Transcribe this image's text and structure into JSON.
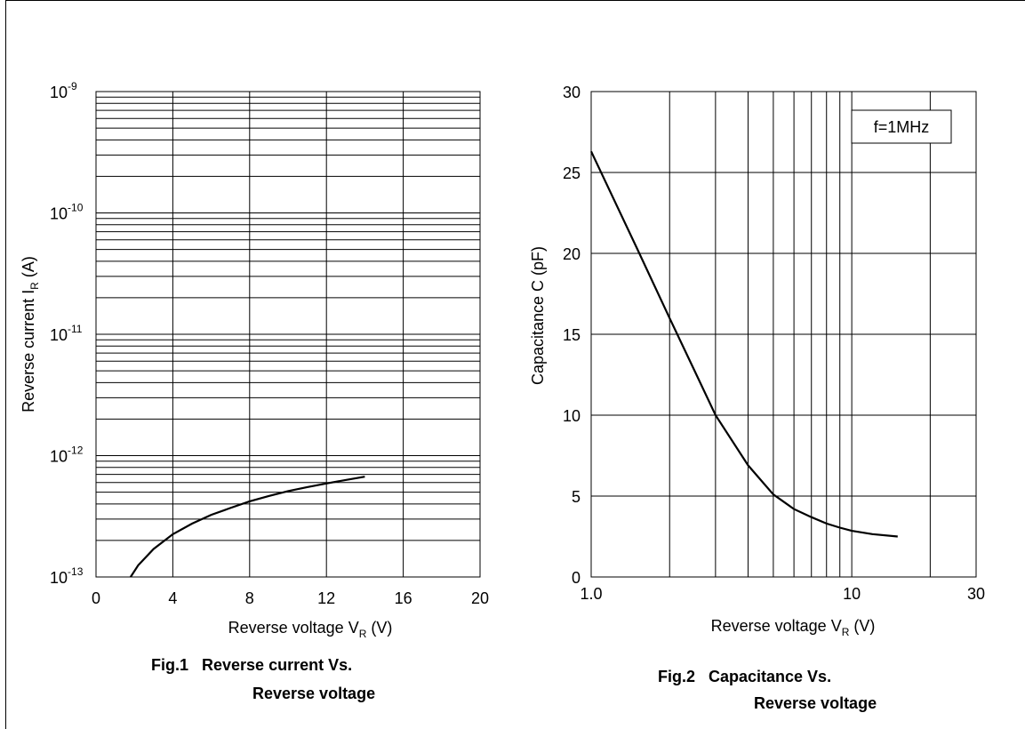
{
  "chart_data": [
    {
      "type": "line",
      "caption_line1": "Fig.1   Reverse current Vs.",
      "caption_line2": "Reverse voltage",
      "xlabel": "Reverse voltage  V",
      "xlabel_sub": "R",
      "xlabel_unit": " (V)",
      "ylabel": "Reverse current  I",
      "ylabel_sub": "R",
      "ylabel_unit": "  (A)",
      "x_scale": "linear",
      "y_scale": "log",
      "xlim": [
        0,
        20
      ],
      "ylim": [
        1e-13,
        1e-09
      ],
      "grid": true,
      "x_ticks": [
        0,
        4,
        8,
        12,
        16,
        20
      ],
      "x_tick_labels": [
        "0",
        "4",
        "8",
        "12",
        "16",
        "20"
      ],
      "y_ticks": [
        {
          "value": 1e-09,
          "base": "10",
          "exp": "-9"
        },
        {
          "value": 1e-10,
          "base": "10",
          "exp": "-10"
        },
        {
          "value": 1e-11,
          "base": "10",
          "exp": "-11"
        },
        {
          "value": 1e-12,
          "base": "10",
          "exp": "-12"
        },
        {
          "value": 1e-13,
          "base": "10",
          "exp": "-13"
        }
      ],
      "series": [
        {
          "x": [
            1.8,
            2.2,
            3,
            4,
            5,
            6,
            7,
            8,
            9,
            10,
            11,
            12,
            13,
            14
          ],
          "y": [
            1e-13,
            1.25e-13,
            1.7e-13,
            2.25e-13,
            2.75e-13,
            3.25e-13,
            3.7e-13,
            4.2e-13,
            4.65e-13,
            5.1e-13,
            5.5e-13,
            5.9e-13,
            6.3e-13,
            6.7e-13
          ]
        }
      ]
    },
    {
      "type": "line",
      "caption_line1": "Fig.2   Capacitance Vs.",
      "caption_line2": "Reverse voltage",
      "xlabel": "Reverse voltage  V",
      "xlabel_sub": "R",
      "xlabel_unit": "  (V)",
      "ylabel": "Capacitance  C  (pF)",
      "x_scale": "log",
      "y_scale": "linear",
      "xlim": [
        1,
        30
      ],
      "ylim": [
        0,
        30
      ],
      "grid": true,
      "x_ticks": [
        1,
        10,
        30
      ],
      "x_tick_labels": [
        "1.0",
        "10",
        "30"
      ],
      "x_grid": [
        2,
        3,
        4,
        5,
        6,
        7,
        8,
        9,
        10,
        20
      ],
      "y_ticks": [
        0,
        5,
        10,
        15,
        20,
        25,
        30
      ],
      "annotation": "f=1MHz",
      "series": [
        {
          "x": [
            1.0,
            1.5,
            2.0,
            2.5,
            3.0,
            4.0,
            5.0,
            6.0,
            7.0,
            8.0,
            9.0,
            10.0,
            12.0,
            15.0
          ],
          "y": [
            26.3,
            20.3,
            16.0,
            12.7,
            10.0,
            6.9,
            5.1,
            4.2,
            3.7,
            3.3,
            3.05,
            2.85,
            2.65,
            2.5
          ]
        }
      ]
    }
  ]
}
